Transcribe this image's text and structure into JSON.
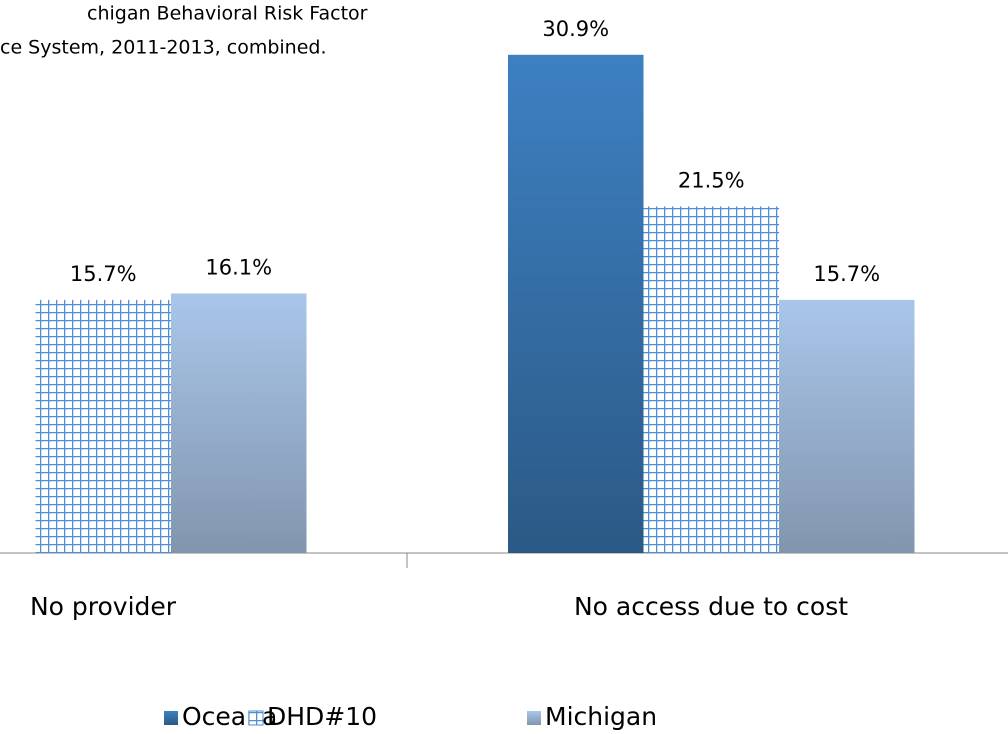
{
  "chart_data": {
    "type": "bar",
    "annotation": [
      "chigan Behavioral Risk Factor",
      "ce System, 2011-2013, combined."
    ],
    "categories": [
      "No provider",
      "No access due to cost"
    ],
    "series": [
      {
        "name": "Oceana",
        "color": "#3a78b6",
        "values": [
          null,
          30.9
        ],
        "value_labels": [
          null,
          "30.9%"
        ]
      },
      {
        "name": "DHD#10",
        "color": "#4f8fd6",
        "values": [
          15.7,
          21.5
        ],
        "value_labels": [
          "15.7%",
          "21.5%"
        ]
      },
      {
        "name": "Michigan",
        "color": "#a4c0e4",
        "values": [
          16.1,
          15.7
        ],
        "value_labels": [
          "16.1%",
          "15.7%"
        ]
      }
    ],
    "ylim": [
      0,
      34.3
    ]
  }
}
